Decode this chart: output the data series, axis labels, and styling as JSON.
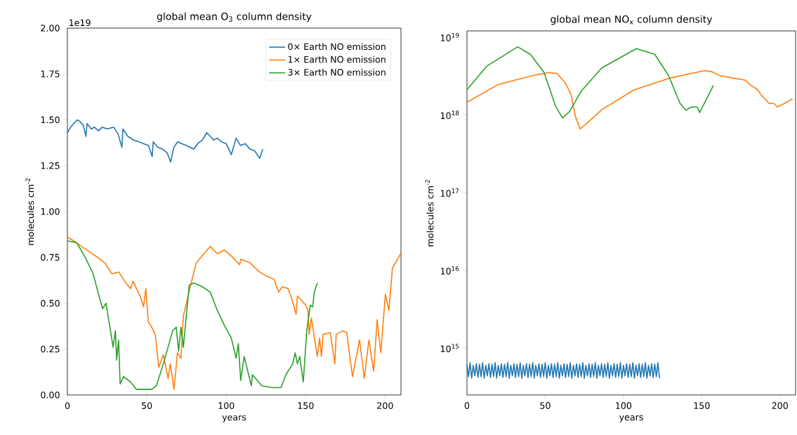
{
  "chart_data": [
    {
      "type": "line",
      "title": "global mean O$_{3}$ column density",
      "xlabel": "years",
      "ylabel": "molecules cm$^{-2}$",
      "annotations": [
        "1e19"
      ],
      "legend": "top right",
      "xlim": [
        0,
        210
      ],
      "ylim": [
        0,
        2.0
      ],
      "xticks": [
        0,
        50,
        100,
        150,
        200
      ],
      "yticks": [
        {
          "value": 0,
          "label": "0.00"
        },
        {
          "value": 0.25,
          "label": "0.25"
        },
        {
          "value": 0.5,
          "label": "0.50"
        },
        {
          "value": 0.75,
          "label": "0.75"
        },
        {
          "value": 1.0,
          "label": "1.00"
        },
        {
          "value": 1.25,
          "label": "1.25"
        },
        {
          "value": 1.5,
          "label": "1.50"
        },
        {
          "value": 1.75,
          "label": "1.75"
        },
        {
          "value": 2.0,
          "label": "2.00"
        }
      ],
      "series": [
        {
          "name": "0× Earth NO emission",
          "color": "#1f77b4",
          "x": [
            0,
            2,
            4,
            6.2,
            8,
            10,
            11.7,
            12.4,
            15,
            17,
            19.5,
            22,
            25,
            29.1,
            32,
            34.3,
            35,
            38,
            41.6,
            45,
            48,
            51,
            53.4,
            54,
            57,
            60,
            62.8,
            65,
            67,
            69.4,
            72,
            75,
            79.6,
            82,
            85,
            87.7,
            90,
            92,
            94.4,
            97,
            100,
            103.2,
            106.2,
            109,
            112,
            115,
            118,
            121,
            123
          ],
          "values": [
            1.43,
            1.46,
            1.48,
            1.5,
            1.49,
            1.47,
            1.41,
            1.48,
            1.45,
            1.46,
            1.44,
            1.46,
            1.45,
            1.46,
            1.42,
            1.35,
            1.45,
            1.41,
            1.39,
            1.38,
            1.37,
            1.36,
            1.3,
            1.38,
            1.35,
            1.34,
            1.32,
            1.27,
            1.35,
            1.38,
            1.37,
            1.36,
            1.34,
            1.37,
            1.39,
            1.43,
            1.41,
            1.39,
            1.4,
            1.38,
            1.37,
            1.31,
            1.4,
            1.36,
            1.37,
            1.34,
            1.33,
            1.29,
            1.34
          ]
        },
        {
          "name": "1× Earth NO emission",
          "color": "#ff7f0e",
          "x": [
            0,
            4,
            8.8,
            14,
            19,
            23.6,
            28,
            32.4,
            36,
            39.8,
            41.3,
            45.7,
            47.9,
            49.4,
            50.9,
            53,
            55.3,
            57.5,
            60.4,
            63.4,
            64.8,
            67.1,
            69.3,
            71.5,
            73,
            78.2,
            81.1,
            85,
            90,
            94.4,
            98.8,
            103,
            108.4,
            109.2,
            115,
            121,
            125,
            130.1,
            133,
            135.2,
            138.9,
            141.1,
            144,
            144.8,
            150,
            151.5,
            152.2,
            153.6,
            157.3,
            158.8,
            159.9,
            161,
            165.5,
            168.4,
            169.2,
            173.6,
            175.8,
            179.5,
            183.9,
            186.9,
            189.8,
            192.8,
            195,
            197.3,
            200.2,
            202.4,
            204.6,
            209.8
          ],
          "values": [
            0.86,
            0.84,
            0.81,
            0.78,
            0.75,
            0.72,
            0.66,
            0.67,
            0.62,
            0.58,
            0.62,
            0.54,
            0.48,
            0.58,
            0.4,
            0.37,
            0.33,
            0.15,
            0.22,
            0.09,
            0.17,
            0.03,
            0.23,
            0.2,
            0.43,
            0.62,
            0.72,
            0.76,
            0.81,
            0.77,
            0.79,
            0.76,
            0.71,
            0.74,
            0.72,
            0.67,
            0.65,
            0.63,
            0.56,
            0.59,
            0.58,
            0.53,
            0.44,
            0.54,
            0.49,
            0.46,
            0.33,
            0.42,
            0.21,
            0.31,
            0.21,
            0.33,
            0.34,
            0.17,
            0.33,
            0.35,
            0.34,
            0.1,
            0.3,
            0.09,
            0.3,
            0.13,
            0.41,
            0.23,
            0.55,
            0.46,
            0.69,
            0.77
          ]
        },
        {
          "name": "3× Earth NO emission",
          "color": "#2ca02c",
          "x": [
            0,
            5.9,
            11.8,
            16.2,
            19.9,
            22.1,
            24.3,
            28.8,
            30.2,
            31,
            32.2,
            33.2,
            35.4,
            39.8,
            43.5,
            53.1,
            56,
            60.4,
            66.3,
            68.5,
            70,
            71.5,
            73,
            76.7,
            79.6,
            85,
            90,
            94.4,
            98.8,
            103.2,
            106.2,
            107.6,
            109.1,
            111.3,
            115.8,
            116.5,
            122.4,
            129,
            134.5,
            137.5,
            141.9,
            143.4,
            144.8,
            146.3,
            148.5,
            150.7,
            152.9,
            154.4,
            155.4,
            157.3
          ],
          "values": [
            0.84,
            0.83,
            0.74,
            0.66,
            0.54,
            0.47,
            0.5,
            0.26,
            0.35,
            0.19,
            0.3,
            0.06,
            0.1,
            0.07,
            0.03,
            0.03,
            0.05,
            0.17,
            0.35,
            0.37,
            0.24,
            0.37,
            0.26,
            0.6,
            0.61,
            0.59,
            0.56,
            0.46,
            0.38,
            0.31,
            0.2,
            0.28,
            0.08,
            0.21,
            0.05,
            0.11,
            0.05,
            0.04,
            0.04,
            0.11,
            0.17,
            0.23,
            0.17,
            0.21,
            0.07,
            0.35,
            0.49,
            0.48,
            0.56,
            0.61
          ]
        }
      ]
    },
    {
      "type": "line",
      "title": "global mean NO$_{x}$ column density",
      "xlabel": "years",
      "ylabel": "molecules cm$^{-2}$",
      "log": true,
      "xlim": [
        0,
        210
      ],
      "ylim": [
        250000000000000.0,
        1.2e+19
      ],
      "xticks": [
        0,
        50,
        100,
        150,
        200
      ],
      "yticks": [
        {
          "value": 1000000000000000.0,
          "label": "10$^{15}$"
        },
        {
          "value": 1e+16,
          "label": "10$^{16}$"
        },
        {
          "value": 1e+17,
          "label": "10$^{17}$"
        },
        {
          "value": 1e+18,
          "label": "10$^{18}$"
        },
        {
          "value": 1e+19,
          "label": "10$^{19}$"
        }
      ],
      "series": [
        {
          "color": "#1f77b4",
          "x": [
            0,
            1,
            2,
            3,
            4,
            5,
            6,
            7,
            8,
            9,
            10,
            11,
            12,
            13,
            14,
            15,
            16,
            17,
            18,
            19,
            20,
            21,
            22,
            23,
            24,
            25,
            26,
            27,
            28,
            29,
            30,
            31,
            32,
            33,
            34,
            35,
            36,
            37,
            38,
            39,
            40,
            41,
            42,
            43,
            44,
            45,
            46,
            47,
            48,
            49,
            50,
            51,
            52,
            53,
            54,
            55,
            56,
            57,
            58,
            59,
            60,
            61,
            62,
            63,
            64,
            65,
            66,
            67,
            68,
            69,
            70,
            71,
            72,
            73,
            74,
            75,
            76,
            77,
            78,
            79,
            80,
            81,
            82,
            83,
            84,
            85,
            86,
            87,
            88,
            89,
            90,
            91,
            92,
            93,
            94,
            95,
            96,
            97,
            98,
            99,
            100,
            101,
            102,
            103,
            104,
            105,
            106,
            107,
            108,
            109,
            110,
            111,
            112,
            113,
            114,
            115,
            116,
            117,
            118,
            119,
            120,
            121,
            122,
            123
          ],
          "values": [
            620000000000000.0,
            430000000000000.0,
            650000000000000.0,
            410000000000000.0,
            600000000000000.0,
            440000000000000.0,
            630000000000000.0,
            420000000000000.0,
            620000000000000.0,
            430000000000000.0,
            650000000000000.0,
            410000000000000.0,
            600000000000000.0,
            440000000000000.0,
            630000000000000.0,
            420000000000000.0,
            620000000000000.0,
            430000000000000.0,
            650000000000000.0,
            410000000000000.0,
            600000000000000.0,
            440000000000000.0,
            630000000000000.0,
            420000000000000.0,
            620000000000000.0,
            430000000000000.0,
            650000000000000.0,
            410000000000000.0,
            600000000000000.0,
            440000000000000.0,
            630000000000000.0,
            420000000000000.0,
            620000000000000.0,
            430000000000000.0,
            650000000000000.0,
            410000000000000.0,
            600000000000000.0,
            440000000000000.0,
            630000000000000.0,
            420000000000000.0,
            620000000000000.0,
            430000000000000.0,
            650000000000000.0,
            410000000000000.0,
            600000000000000.0,
            440000000000000.0,
            630000000000000.0,
            420000000000000.0,
            620000000000000.0,
            430000000000000.0,
            650000000000000.0,
            410000000000000.0,
            600000000000000.0,
            440000000000000.0,
            630000000000000.0,
            420000000000000.0,
            620000000000000.0,
            430000000000000.0,
            650000000000000.0,
            410000000000000.0,
            600000000000000.0,
            440000000000000.0,
            630000000000000.0,
            420000000000000.0,
            620000000000000.0,
            430000000000000.0,
            650000000000000.0,
            410000000000000.0,
            600000000000000.0,
            440000000000000.0,
            630000000000000.0,
            420000000000000.0,
            620000000000000.0,
            430000000000000.0,
            650000000000000.0,
            410000000000000.0,
            600000000000000.0,
            440000000000000.0,
            630000000000000.0,
            420000000000000.0,
            620000000000000.0,
            430000000000000.0,
            650000000000000.0,
            410000000000000.0,
            600000000000000.0,
            440000000000000.0,
            630000000000000.0,
            420000000000000.0,
            620000000000000.0,
            430000000000000.0,
            650000000000000.0,
            410000000000000.0,
            600000000000000.0,
            440000000000000.0,
            630000000000000.0,
            420000000000000.0,
            620000000000000.0,
            430000000000000.0,
            650000000000000.0,
            410000000000000.0,
            600000000000000.0,
            440000000000000.0,
            630000000000000.0,
            420000000000000.0,
            620000000000000.0,
            430000000000000.0,
            650000000000000.0,
            410000000000000.0,
            600000000000000.0,
            440000000000000.0,
            630000000000000.0,
            420000000000000.0,
            620000000000000.0,
            430000000000000.0,
            650000000000000.0,
            410000000000000.0,
            600000000000000.0,
            440000000000000.0,
            630000000000000.0,
            420000000000000.0,
            620000000000000.0,
            430000000000000.0,
            650000000000000.0,
            410000000000000.0
          ]
        },
        {
          "color": "#ff7f0e",
          "x": [
            0,
            19.9,
            42,
            52.3,
            57.5,
            62.7,
            66.4,
            69.3,
            72.3,
            76,
            86.3,
            106.9,
            130.5,
            151.8,
            156.3,
            161.5,
            168.9,
            177.7,
            181.4,
            185.8,
            188,
            193.2,
            196.2,
            198.4,
            202.8,
            208
          ],
          "values": [
            1.45e+18,
            2.45e+18,
            3.2e+18,
            3.5e+18,
            3.4e+18,
            2.6e+18,
            1.85e+18,
            9.5e+17,
            6.6e+17,
            7.6e+17,
            1.17e+18,
            2.1e+18,
            3e+18,
            3.7e+18,
            3.6e+18,
            3.2e+18,
            3e+18,
            2.8e+18,
            2.4e+18,
            2.1e+18,
            1.8e+18,
            1.4e+18,
            1.4e+18,
            1.26e+18,
            1.4e+18,
            1.6e+18
          ]
        },
        {
          "color": "#2ca02c",
          "x": [
            0,
            12.5,
            32.4,
            40.5,
            49.3,
            56.6,
            61,
            65.5,
            72.9,
            86.1,
            108.2,
            120,
            128.8,
            136.2,
            139.9,
            143.5,
            147.2,
            148.7,
            157.5
          ],
          "values": [
            2.1e+18,
            4.2e+18,
            7.5e+18,
            6e+18,
            3.5e+18,
            1.3e+18,
            9.1e+17,
            1.1e+18,
            2e+18,
            4e+18,
            7.1e+18,
            6e+18,
            3.2e+18,
            1.4e+18,
            1.15e+18,
            1.26e+18,
            1.26e+18,
            1.07e+18,
            2.4e+18
          ]
        }
      ]
    }
  ]
}
